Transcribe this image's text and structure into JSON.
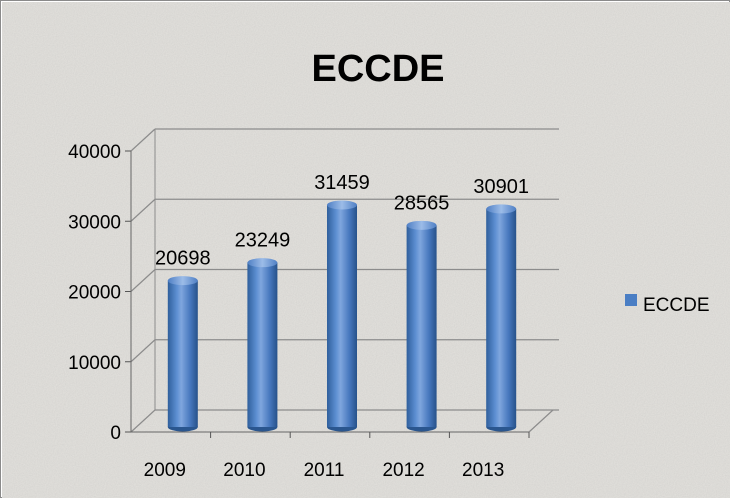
{
  "chart_data": {
    "type": "bar",
    "title": "ECCDE",
    "categories": [
      "2009",
      "2010",
      "2011",
      "2012",
      "2013"
    ],
    "series": [
      {
        "name": "ECCDE",
        "values": [
          20698,
          23249,
          31459,
          28565,
          30901
        ]
      }
    ],
    "data_labels": [
      "20698",
      "23249",
      "31459",
      "28565",
      "30901"
    ],
    "y_ticks": [
      "0",
      "10000",
      "20000",
      "30000",
      "40000"
    ],
    "ylim": [
      0,
      40000
    ],
    "xlabel": "",
    "ylabel": "",
    "grid": true,
    "legend": {
      "position": "right",
      "entries": [
        "ECCDE"
      ]
    },
    "style": "3d-cylinder",
    "colors": {
      "bar": "#4a7ec4",
      "bar_dark": "#2a568f",
      "bar_light": "#8fb4e4",
      "background": "#e2e0dc",
      "grid": "#8c8c8c"
    }
  }
}
